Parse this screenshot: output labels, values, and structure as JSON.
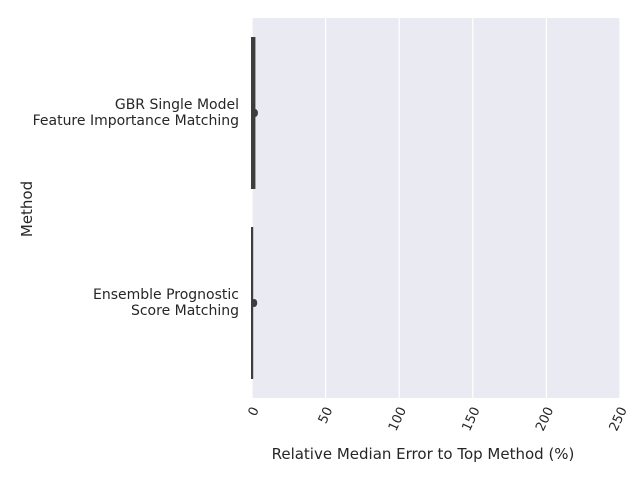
{
  "chart_data": {
    "type": "violin",
    "orientation": "horizontal",
    "xlabel": "Relative Median Error to Top Method (%)",
    "ylabel": "Method",
    "xlim": [
      0,
      250
    ],
    "xticks": [
      0,
      50,
      100,
      150,
      200,
      250
    ],
    "grid": true,
    "categories": [
      "GBR Single Model\nFeature Importance Matching",
      "Ensemble Prognostic\nScore Matching"
    ],
    "series": [
      {
        "values": [
          0,
          0.5,
          1,
          2.5,
          3
        ]
      },
      {
        "values": [
          0,
          0.3,
          0.5,
          1,
          1.5
        ]
      }
    ],
    "colors": {
      "background": "#eaeaf2",
      "grid": "#ffffff",
      "text": "#262626",
      "violin": "#3d3d3d"
    }
  }
}
